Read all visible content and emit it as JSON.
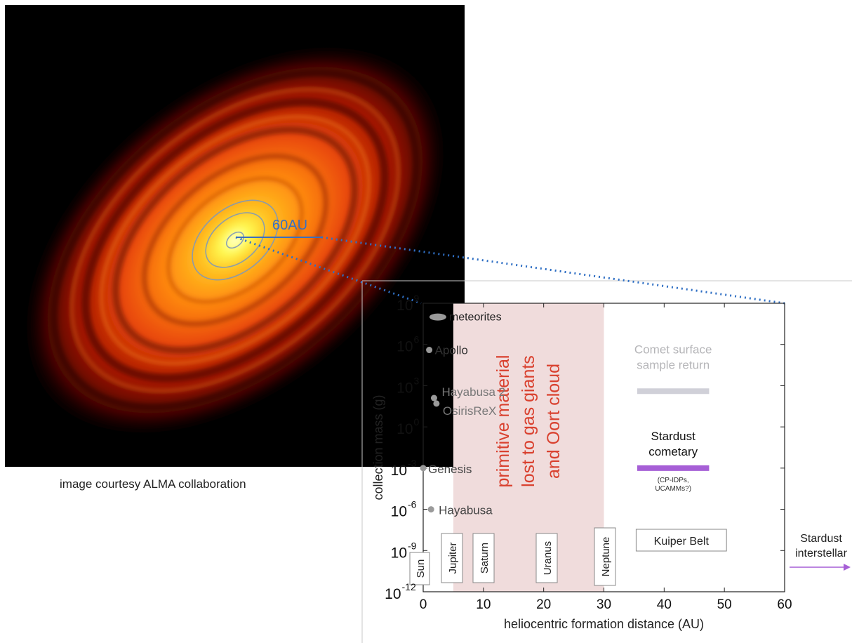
{
  "caption": "image courtesy ALMA collaboration",
  "disk_label": "60AU",
  "colors": {
    "region": "#f0dcdc",
    "region_text": "#d9412f",
    "dots": "#9a9a9a",
    "comet_bar": "#d0d0d8",
    "stardust_bar": "#a65fd6",
    "arrow": "#a65fd6",
    "dotted": "#2f6fc4",
    "disk_line": "#3a6fc0"
  },
  "chart_data": {
    "type": "scatter",
    "xlabel": "heliocentric formation distance (AU)",
    "ylabel": "collection mass (g)",
    "xlim": [
      0,
      60
    ],
    "ylim_log10": [
      -12,
      9
    ],
    "x_ticks": [
      0,
      10,
      20,
      30,
      40,
      50,
      60
    ],
    "y_ticks": [
      {
        "exp": -12,
        "label": "10",
        "sup": "-12"
      },
      {
        "exp": -9,
        "label": "10",
        "sup": "-9"
      },
      {
        "exp": -6,
        "label": "10",
        "sup": "-6"
      },
      {
        "exp": -3,
        "label": "10",
        "sup": "-3"
      },
      {
        "exp": 0,
        "label": "10",
        "sup": "0"
      },
      {
        "exp": 3,
        "label": "10",
        "sup": "3"
      },
      {
        "exp": 6,
        "label": "10",
        "sup": "6"
      },
      {
        "exp": 9,
        "label": "10",
        "sup": "9"
      }
    ],
    "shaded_region": {
      "x": [
        5,
        30
      ],
      "text": [
        "primitive material",
        "lost to gas giants",
        "and Oort cloud"
      ]
    },
    "points": [
      {
        "name": "meteorites",
        "x": 1.5,
        "log10_mass": 8.0,
        "shape": "ellipse"
      },
      {
        "name": "Apollo",
        "x": 1.0,
        "log10_mass": 5.6
      },
      {
        "name": "Hayabusa 2",
        "x": 1.8,
        "log10_mass": 2.1
      },
      {
        "name": "OsirisReX",
        "x": 2.2,
        "log10_mass": 1.7
      },
      {
        "name": "Genesis",
        "x": 0.0,
        "log10_mass": -3.0
      },
      {
        "name": "Hayabusa",
        "x": 1.3,
        "log10_mass": -6.0
      }
    ],
    "bars": [
      {
        "name": [
          "Comet surface",
          "sample return"
        ],
        "x": [
          36,
          47
        ],
        "log10_mass": 2.6,
        "role": "comet"
      },
      {
        "name": [
          "Stardust",
          "cometary"
        ],
        "note": [
          "(CP-IDPs,",
          "UCAMMs?)"
        ],
        "x": [
          36,
          47
        ],
        "log10_mass": -3.0,
        "role": "stardust"
      }
    ],
    "planets": [
      {
        "name": "Sun",
        "x": 0
      },
      {
        "name": "Jupiter",
        "x": 5.2
      },
      {
        "name": "Saturn",
        "x": 9.5
      },
      {
        "name": "Uranus",
        "x": 19.2
      },
      {
        "name": "Neptune",
        "x": 30.1
      }
    ],
    "kuiper_belt": {
      "name": "Kuiper Belt",
      "x": [
        35,
        50
      ]
    },
    "interstellar": {
      "name": [
        "Stardust",
        "interstellar"
      ]
    }
  }
}
